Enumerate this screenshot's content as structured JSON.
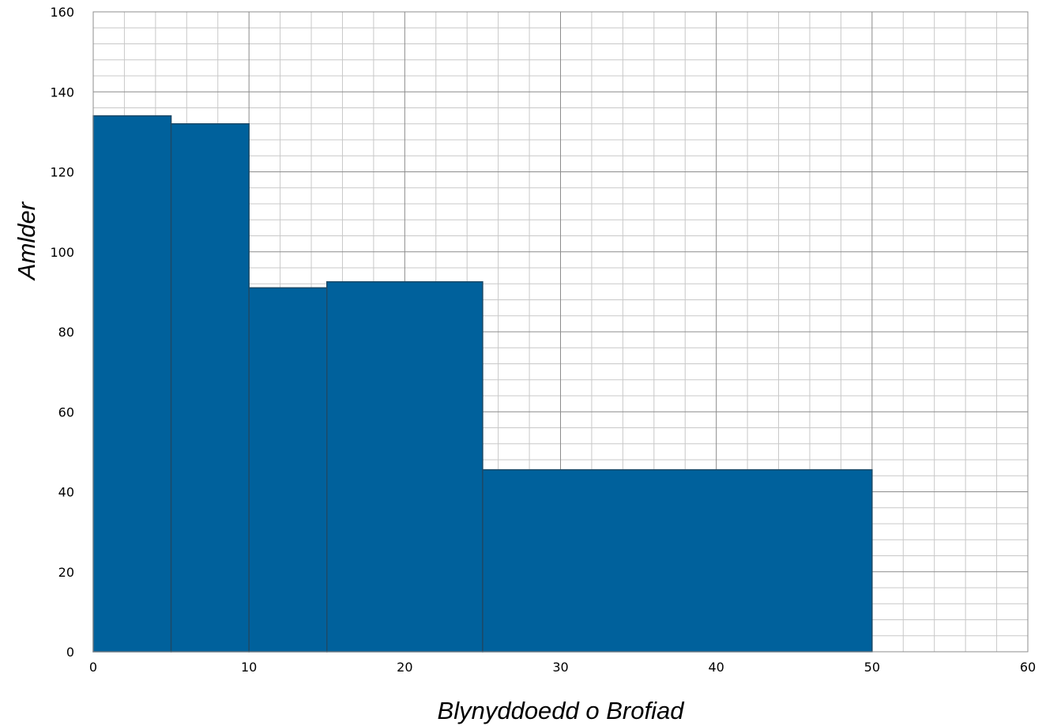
{
  "chart_data": {
    "type": "bar",
    "xlabel": "Blynyddoedd o Brofiad",
    "ylabel": "Amlder",
    "xlim": [
      0,
      60
    ],
    "ylim": [
      0,
      160
    ],
    "grid": true,
    "x_ticks": [
      0,
      10,
      20,
      30,
      40,
      50,
      60
    ],
    "y_ticks": [
      0,
      20,
      40,
      60,
      80,
      100,
      120,
      140,
      160
    ],
    "bins": [
      {
        "x0": 0,
        "x1": 5,
        "value": 134
      },
      {
        "x0": 5,
        "x1": 10,
        "value": 132
      },
      {
        "x0": 10,
        "x1": 15,
        "value": 91
      },
      {
        "x0": 15,
        "x1": 25,
        "value": 92.5
      },
      {
        "x0": 25,
        "x1": 50,
        "value": 45.5
      }
    ],
    "colors": {
      "bar_fill": "#00619c",
      "bar_stroke": "#1c4a68",
      "grid_major": "#8c8c8c",
      "grid_minor": "#c8c8c8"
    }
  }
}
